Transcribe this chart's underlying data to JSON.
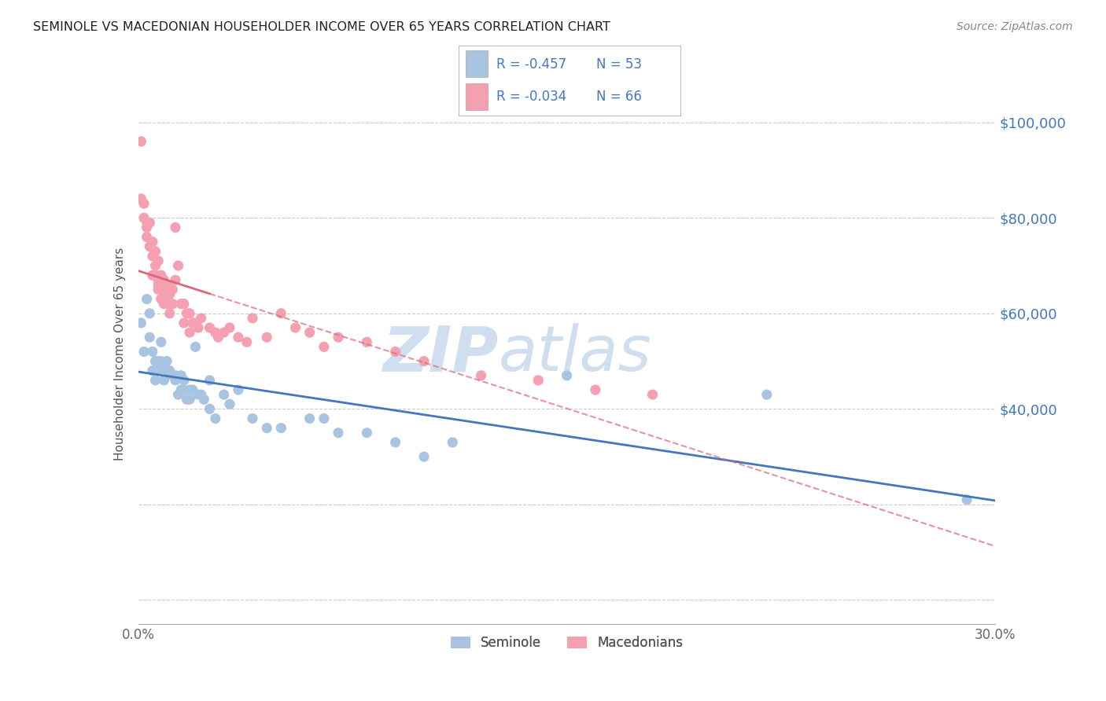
{
  "title": "SEMINOLE VS MACEDONIAN HOUSEHOLDER INCOME OVER 65 YEARS CORRELATION CHART",
  "source": "Source: ZipAtlas.com",
  "ylabel": "Householder Income Over 65 years",
  "xlim": [
    0.0,
    0.3
  ],
  "ylim": [
    -5000,
    108000
  ],
  "legend_r1": "-0.457",
  "legend_n1": "53",
  "legend_r2": "-0.034",
  "legend_n2": "66",
  "seminole_color": "#a8c4e0",
  "macedonian_color": "#f4a0b0",
  "trend_seminole_color": "#4477bb",
  "trend_macedonian_color": "#dd6677",
  "watermark_zip_color": "#d0dff0",
  "watermark_atlas_color": "#d0dff0",
  "title_color": "#222222",
  "axis_label_color": "#4477bb",
  "label_color": "#555555",
  "seminole_x": [
    0.001,
    0.002,
    0.003,
    0.004,
    0.004,
    0.005,
    0.005,
    0.006,
    0.006,
    0.007,
    0.007,
    0.008,
    0.008,
    0.009,
    0.009,
    0.01,
    0.01,
    0.011,
    0.012,
    0.013,
    0.013,
    0.014,
    0.015,
    0.015,
    0.016,
    0.016,
    0.017,
    0.018,
    0.018,
    0.019,
    0.02,
    0.021,
    0.022,
    0.023,
    0.025,
    0.025,
    0.027,
    0.03,
    0.032,
    0.035,
    0.04,
    0.045,
    0.05,
    0.06,
    0.065,
    0.07,
    0.08,
    0.09,
    0.1,
    0.11,
    0.15,
    0.22,
    0.29
  ],
  "seminole_y": [
    58000,
    52000,
    63000,
    60000,
    55000,
    48000,
    52000,
    50000,
    46000,
    48000,
    50000,
    50000,
    54000,
    46000,
    49000,
    48000,
    50000,
    48000,
    47000,
    47000,
    46000,
    43000,
    44000,
    47000,
    44000,
    46000,
    42000,
    42000,
    44000,
    44000,
    53000,
    43000,
    43000,
    42000,
    46000,
    40000,
    38000,
    43000,
    41000,
    44000,
    38000,
    36000,
    36000,
    38000,
    38000,
    35000,
    35000,
    33000,
    30000,
    33000,
    47000,
    43000,
    21000
  ],
  "macedonian_x": [
    0.001,
    0.001,
    0.002,
    0.002,
    0.003,
    0.003,
    0.003,
    0.004,
    0.004,
    0.005,
    0.005,
    0.005,
    0.006,
    0.006,
    0.006,
    0.007,
    0.007,
    0.007,
    0.007,
    0.008,
    0.008,
    0.008,
    0.009,
    0.009,
    0.009,
    0.01,
    0.01,
    0.01,
    0.011,
    0.011,
    0.012,
    0.012,
    0.013,
    0.013,
    0.014,
    0.015,
    0.016,
    0.016,
    0.017,
    0.018,
    0.018,
    0.019,
    0.02,
    0.021,
    0.022,
    0.025,
    0.027,
    0.028,
    0.03,
    0.032,
    0.035,
    0.038,
    0.04,
    0.045,
    0.05,
    0.055,
    0.06,
    0.065,
    0.07,
    0.08,
    0.09,
    0.1,
    0.12,
    0.14,
    0.16,
    0.18
  ],
  "macedonian_y": [
    96000,
    84000,
    83000,
    80000,
    79000,
    78000,
    76000,
    79000,
    74000,
    75000,
    72000,
    68000,
    73000,
    70000,
    68000,
    71000,
    67000,
    66000,
    65000,
    68000,
    65000,
    63000,
    67000,
    64000,
    62000,
    65000,
    66000,
    62000,
    64000,
    60000,
    65000,
    62000,
    78000,
    67000,
    70000,
    62000,
    62000,
    58000,
    60000,
    60000,
    56000,
    58000,
    58000,
    57000,
    59000,
    57000,
    56000,
    55000,
    56000,
    57000,
    55000,
    54000,
    59000,
    55000,
    60000,
    57000,
    56000,
    53000,
    55000,
    54000,
    52000,
    50000,
    47000,
    46000,
    44000,
    43000
  ]
}
